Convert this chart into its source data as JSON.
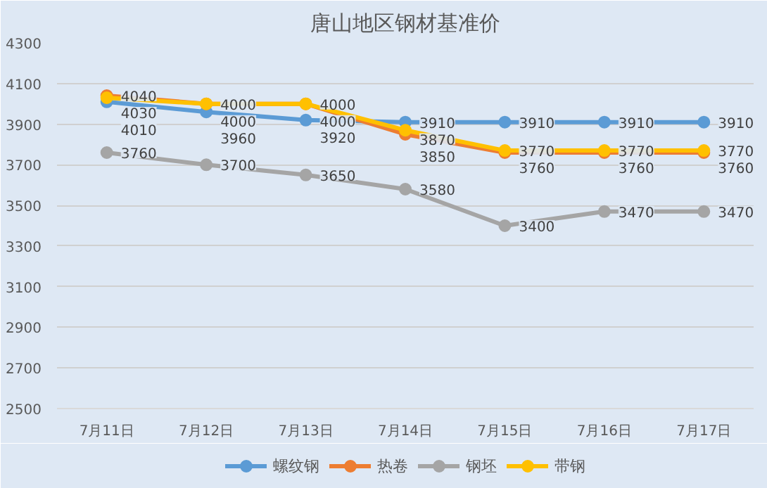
{
  "chart_data": {
    "type": "line",
    "title": "唐山地区钢材基准价",
    "categories": [
      "7月11日",
      "7月12日",
      "7月13日",
      "7月14日",
      "7月15日",
      "7月16日",
      "7月17日"
    ],
    "series": [
      {
        "name": "螺纹钢",
        "color": "#5b9bd5",
        "values": [
          4010,
          3960,
          3920,
          3910,
          3910,
          3910,
          3910
        ]
      },
      {
        "name": "热卷",
        "color": "#ed7d31",
        "values": [
          4040,
          4000,
          4000,
          3850,
          3760,
          3760,
          3760
        ]
      },
      {
        "name": "钢坯",
        "color": "#a5a5a5",
        "values": [
          3760,
          3700,
          3650,
          3580,
          3400,
          3470,
          3470
        ]
      },
      {
        "name": "带钢",
        "color": "#ffc000",
        "values": [
          4030,
          4000,
          4000,
          3870,
          3770,
          3770,
          3770
        ]
      }
    ],
    "ylim": [
      2500,
      4300
    ],
    "yticks": [
      2500,
      2700,
      2900,
      3100,
      3300,
      3500,
      3700,
      3900,
      4100,
      4300
    ],
    "grid": "y",
    "legend": "bottom",
    "marker": "circle",
    "line_style": "solid",
    "data_labels": true
  }
}
